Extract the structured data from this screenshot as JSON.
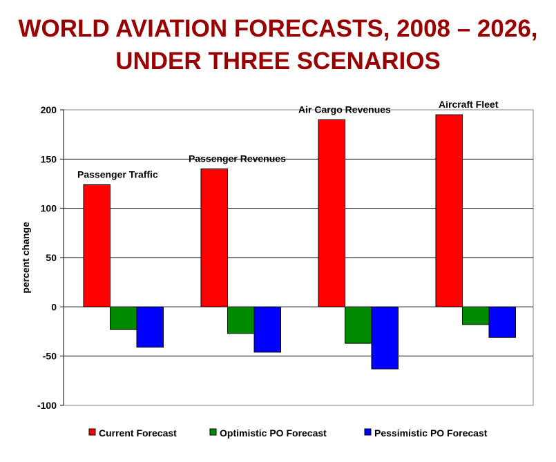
{
  "chart_data": {
    "type": "bar",
    "title_line1": "WORLD AVIATION FORECASTS, 2008 – 2026,",
    "title_line2": "UNDER THREE SCENARIOS",
    "xlabel": "",
    "ylabel": "percent change",
    "ylim": [
      -100,
      200
    ],
    "yticks": [
      "200",
      "150",
      "100",
      "50",
      "0",
      "-50",
      "-100"
    ],
    "grid": true,
    "legend_position": "bottom",
    "categories": [
      "Passenger Traffic",
      "Passenger Revenues",
      "Air Cargo Revenues",
      "Aircraft Fleet"
    ],
    "series": [
      {
        "name": "Current Forecast",
        "color": "#ff0000",
        "values": [
          124,
          140,
          190,
          195
        ]
      },
      {
        "name": "Optimistic PO Forecast",
        "color": "#008a00",
        "values": [
          -23,
          -27,
          -37,
          -18
        ]
      },
      {
        "name": "Pessimistic PO Forecast",
        "color": "#0000ff",
        "values": [
          -41,
          -46,
          -63,
          -31
        ]
      }
    ]
  }
}
